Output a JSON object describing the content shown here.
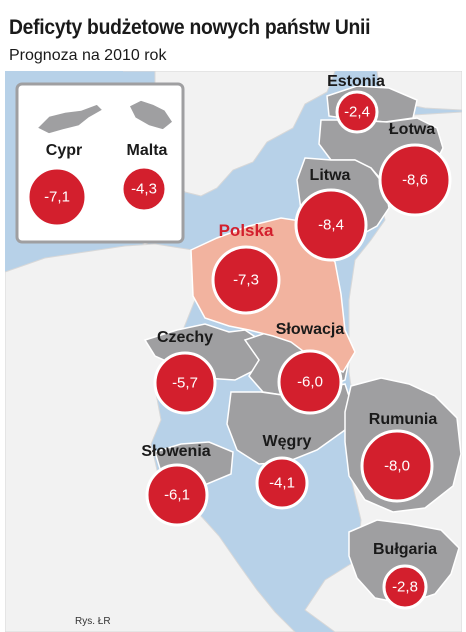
{
  "title": "Deficyty budżetowe nowych państw Unii",
  "subtitle": "Prognoza na 2010 rok",
  "colors": {
    "sea": "#b7d1e8",
    "land_other": "#f2f2f2",
    "new_member": "#9f9fa1",
    "highlight_country": "#f2b39f",
    "bubble": "#d31f2d",
    "highlight_text": "#d31f2d"
  },
  "highlighted_country": "Polska",
  "countries": [
    {
      "id": "estonia",
      "name": "Estonia",
      "deficit": "-2,4"
    },
    {
      "id": "lotwa",
      "name": "Łotwa",
      "deficit": "-8,6"
    },
    {
      "id": "litwa",
      "name": "Litwa",
      "deficit": "-8,4"
    },
    {
      "id": "polska",
      "name": "Polska",
      "deficit": "-7,3"
    },
    {
      "id": "czechy",
      "name": "Czechy",
      "deficit": "-5,7"
    },
    {
      "id": "slowacja",
      "name": "Słowacja",
      "deficit": "-6,0"
    },
    {
      "id": "wegry",
      "name": "Węgry",
      "deficit": "-4,1"
    },
    {
      "id": "slowenia",
      "name": "Słowenia",
      "deficit": "-6,1"
    },
    {
      "id": "rumunia",
      "name": "Rumunia",
      "deficit": "-8,0"
    },
    {
      "id": "bulgaria",
      "name": "Bułgaria",
      "deficit": "-2,8"
    },
    {
      "id": "cypr",
      "name": "Cypr",
      "deficit": "-7,1"
    },
    {
      "id": "malta",
      "name": "Malta",
      "deficit": "-4,3"
    }
  ],
  "credit": "Rys. ŁR"
}
